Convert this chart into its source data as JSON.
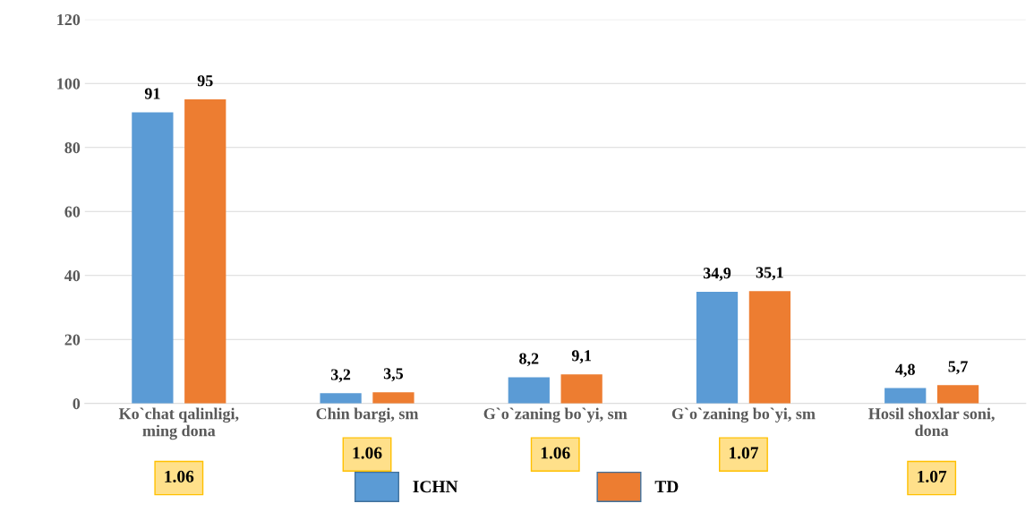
{
  "chart_data": {
    "type": "bar",
    "categories": [
      "Ko`chat qalinligi,\nming dona",
      "Chin bargi, sm",
      "G`o`zaning bo`yi, sm",
      "G`o`zaning bo`yi, sm",
      "Hosil shoxlar soni,\ndona"
    ],
    "series": [
      {
        "name": "ICHN",
        "color": "#5b9bd5",
        "values": [
          91,
          3.2,
          8.2,
          34.9,
          4.8
        ],
        "value_labels": [
          "91",
          "3,2",
          "8,2",
          "34,9",
          "4,8"
        ]
      },
      {
        "name": "TD",
        "color": "#ed7d31",
        "values": [
          95,
          3.5,
          9.1,
          35.1,
          5.7
        ],
        "value_labels": [
          "95",
          "3,5",
          "9,1",
          "35,1",
          "5,7"
        ]
      }
    ],
    "ylim": [
      0,
      120
    ],
    "yticks": [
      0,
      20,
      40,
      60,
      80,
      100,
      120
    ],
    "grid": "y",
    "legend": "bottom",
    "annotations": [
      "1.06",
      "1.06",
      "1.06",
      "1.07",
      "1.07"
    ]
  }
}
